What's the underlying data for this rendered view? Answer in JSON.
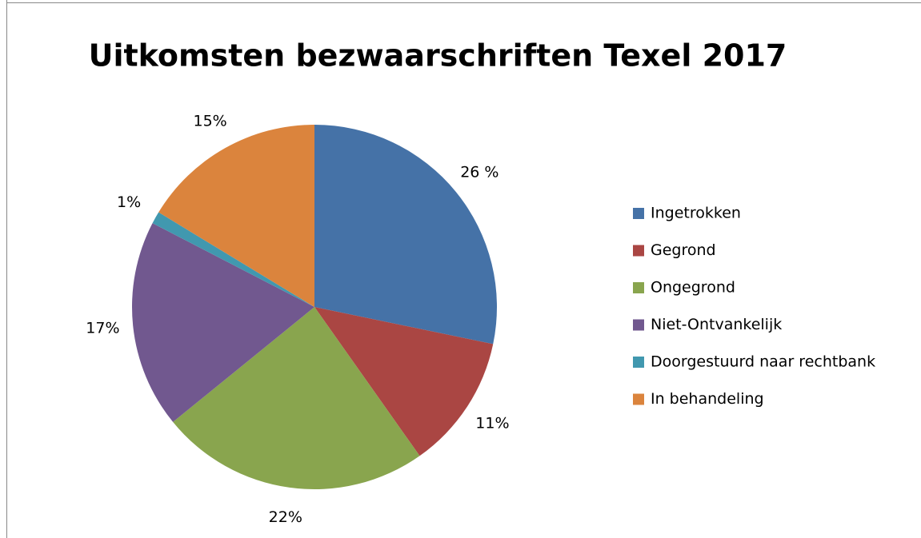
{
  "chart_data": {
    "type": "pie",
    "title": "Uitkomsten bezwaarschriften Texel 2017",
    "categories": [
      "Ingetrokken",
      "Gegrond",
      "Ongegrond",
      "Niet-Ontvankelijk",
      "Doorgestuurd naar rechtbank",
      "In behandeling"
    ],
    "values": [
      26,
      11,
      22,
      17,
      1,
      15
    ],
    "value_labels": [
      "26 %",
      "11%",
      "22%",
      "17%",
      "1%",
      "15%"
    ],
    "colors": [
      "#4572a7",
      "#aa4643",
      "#89a54e",
      "#71588f",
      "#4198af",
      "#db843d"
    ],
    "legend": "right"
  }
}
